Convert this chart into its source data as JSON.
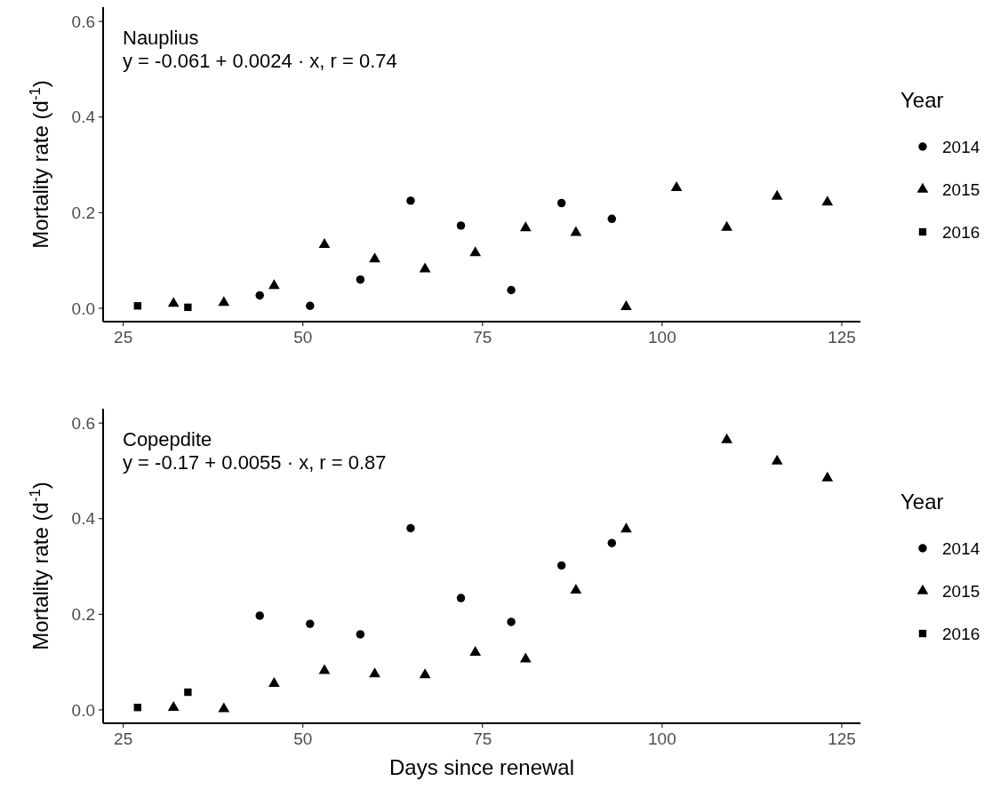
{
  "chart_data": [
    {
      "type": "scatter",
      "ylabel": "Mortality rate (d$^{-1}$)",
      "legend_title": "Year",
      "legend": "right",
      "annotations": [
        "Nauplius",
        "y = -0.061 + 0.0024 · x,  r = 0.74"
      ],
      "xlim": [
        22.2,
        127.6
      ],
      "xticks": [
        25,
        50,
        75,
        100,
        125
      ],
      "ylim": [
        -0.028,
        0.63
      ],
      "yticks": [
        {
          "value": 0,
          "label": "0.0"
        },
        0.2,
        0.4,
        0.6
      ],
      "series": [
        {
          "name": "2014",
          "color": "#000000",
          "marker": "circle",
          "x": [
            44,
            51,
            58,
            65,
            72,
            79,
            86,
            93
          ],
          "values": [
            0.027,
            0.005,
            0.06,
            0.225,
            0.173,
            0.038,
            0.22,
            0.187
          ]
        },
        {
          "name": "2015",
          "color": "#000000",
          "marker": "triangle",
          "x": [
            32,
            39,
            46,
            53,
            60,
            67,
            74,
            81,
            88,
            95,
            102,
            109,
            116,
            123
          ],
          "values": [
            0.01,
            0.012,
            0.047,
            0.133,
            0.103,
            0.082,
            0.116,
            0.168,
            0.158,
            0.003,
            0.252,
            0.169,
            0.234,
            0.222
          ]
        },
        {
          "name": "2016",
          "color": "#000000",
          "marker": "square",
          "x": [
            27,
            34
          ],
          "values": [
            0.005,
            0.002
          ]
        }
      ]
    },
    {
      "type": "scatter",
      "xlabel": "Days since renewal",
      "ylabel": "Mortality rate (d$^{-1}$)",
      "legend_title": "Year",
      "legend": "right",
      "annotations": [
        "Copepdite",
        "y = -0.17 + 0.0055 · x,  r = 0.87"
      ],
      "xlim": [
        22.2,
        127.6
      ],
      "xticks": [
        25,
        50,
        75,
        100,
        125
      ],
      "ylim": [
        -0.028,
        0.63
      ],
      "yticks": [
        {
          "value": 0,
          "label": "0.0"
        },
        0.2,
        0.4,
        0.6
      ],
      "series": [
        {
          "name": "2014",
          "color": "#000000",
          "marker": "circle",
          "x": [
            44,
            51,
            58,
            65,
            72,
            79,
            86,
            93
          ],
          "values": [
            0.197,
            0.18,
            0.158,
            0.38,
            0.234,
            0.184,
            0.302,
            0.349
          ]
        },
        {
          "name": "2015",
          "color": "#000000",
          "marker": "triangle",
          "x": [
            32,
            39,
            46,
            53,
            60,
            67,
            74,
            81,
            88,
            95,
            109,
            116,
            123
          ],
          "values": [
            0.005,
            0.002,
            0.055,
            0.082,
            0.075,
            0.073,
            0.12,
            0.106,
            0.25,
            0.378,
            0.565,
            0.52,
            0.485
          ]
        },
        {
          "name": "2016",
          "color": "#000000",
          "marker": "square",
          "x": [
            27,
            34
          ],
          "values": [
            0.005,
            0.037
          ]
        }
      ]
    }
  ]
}
